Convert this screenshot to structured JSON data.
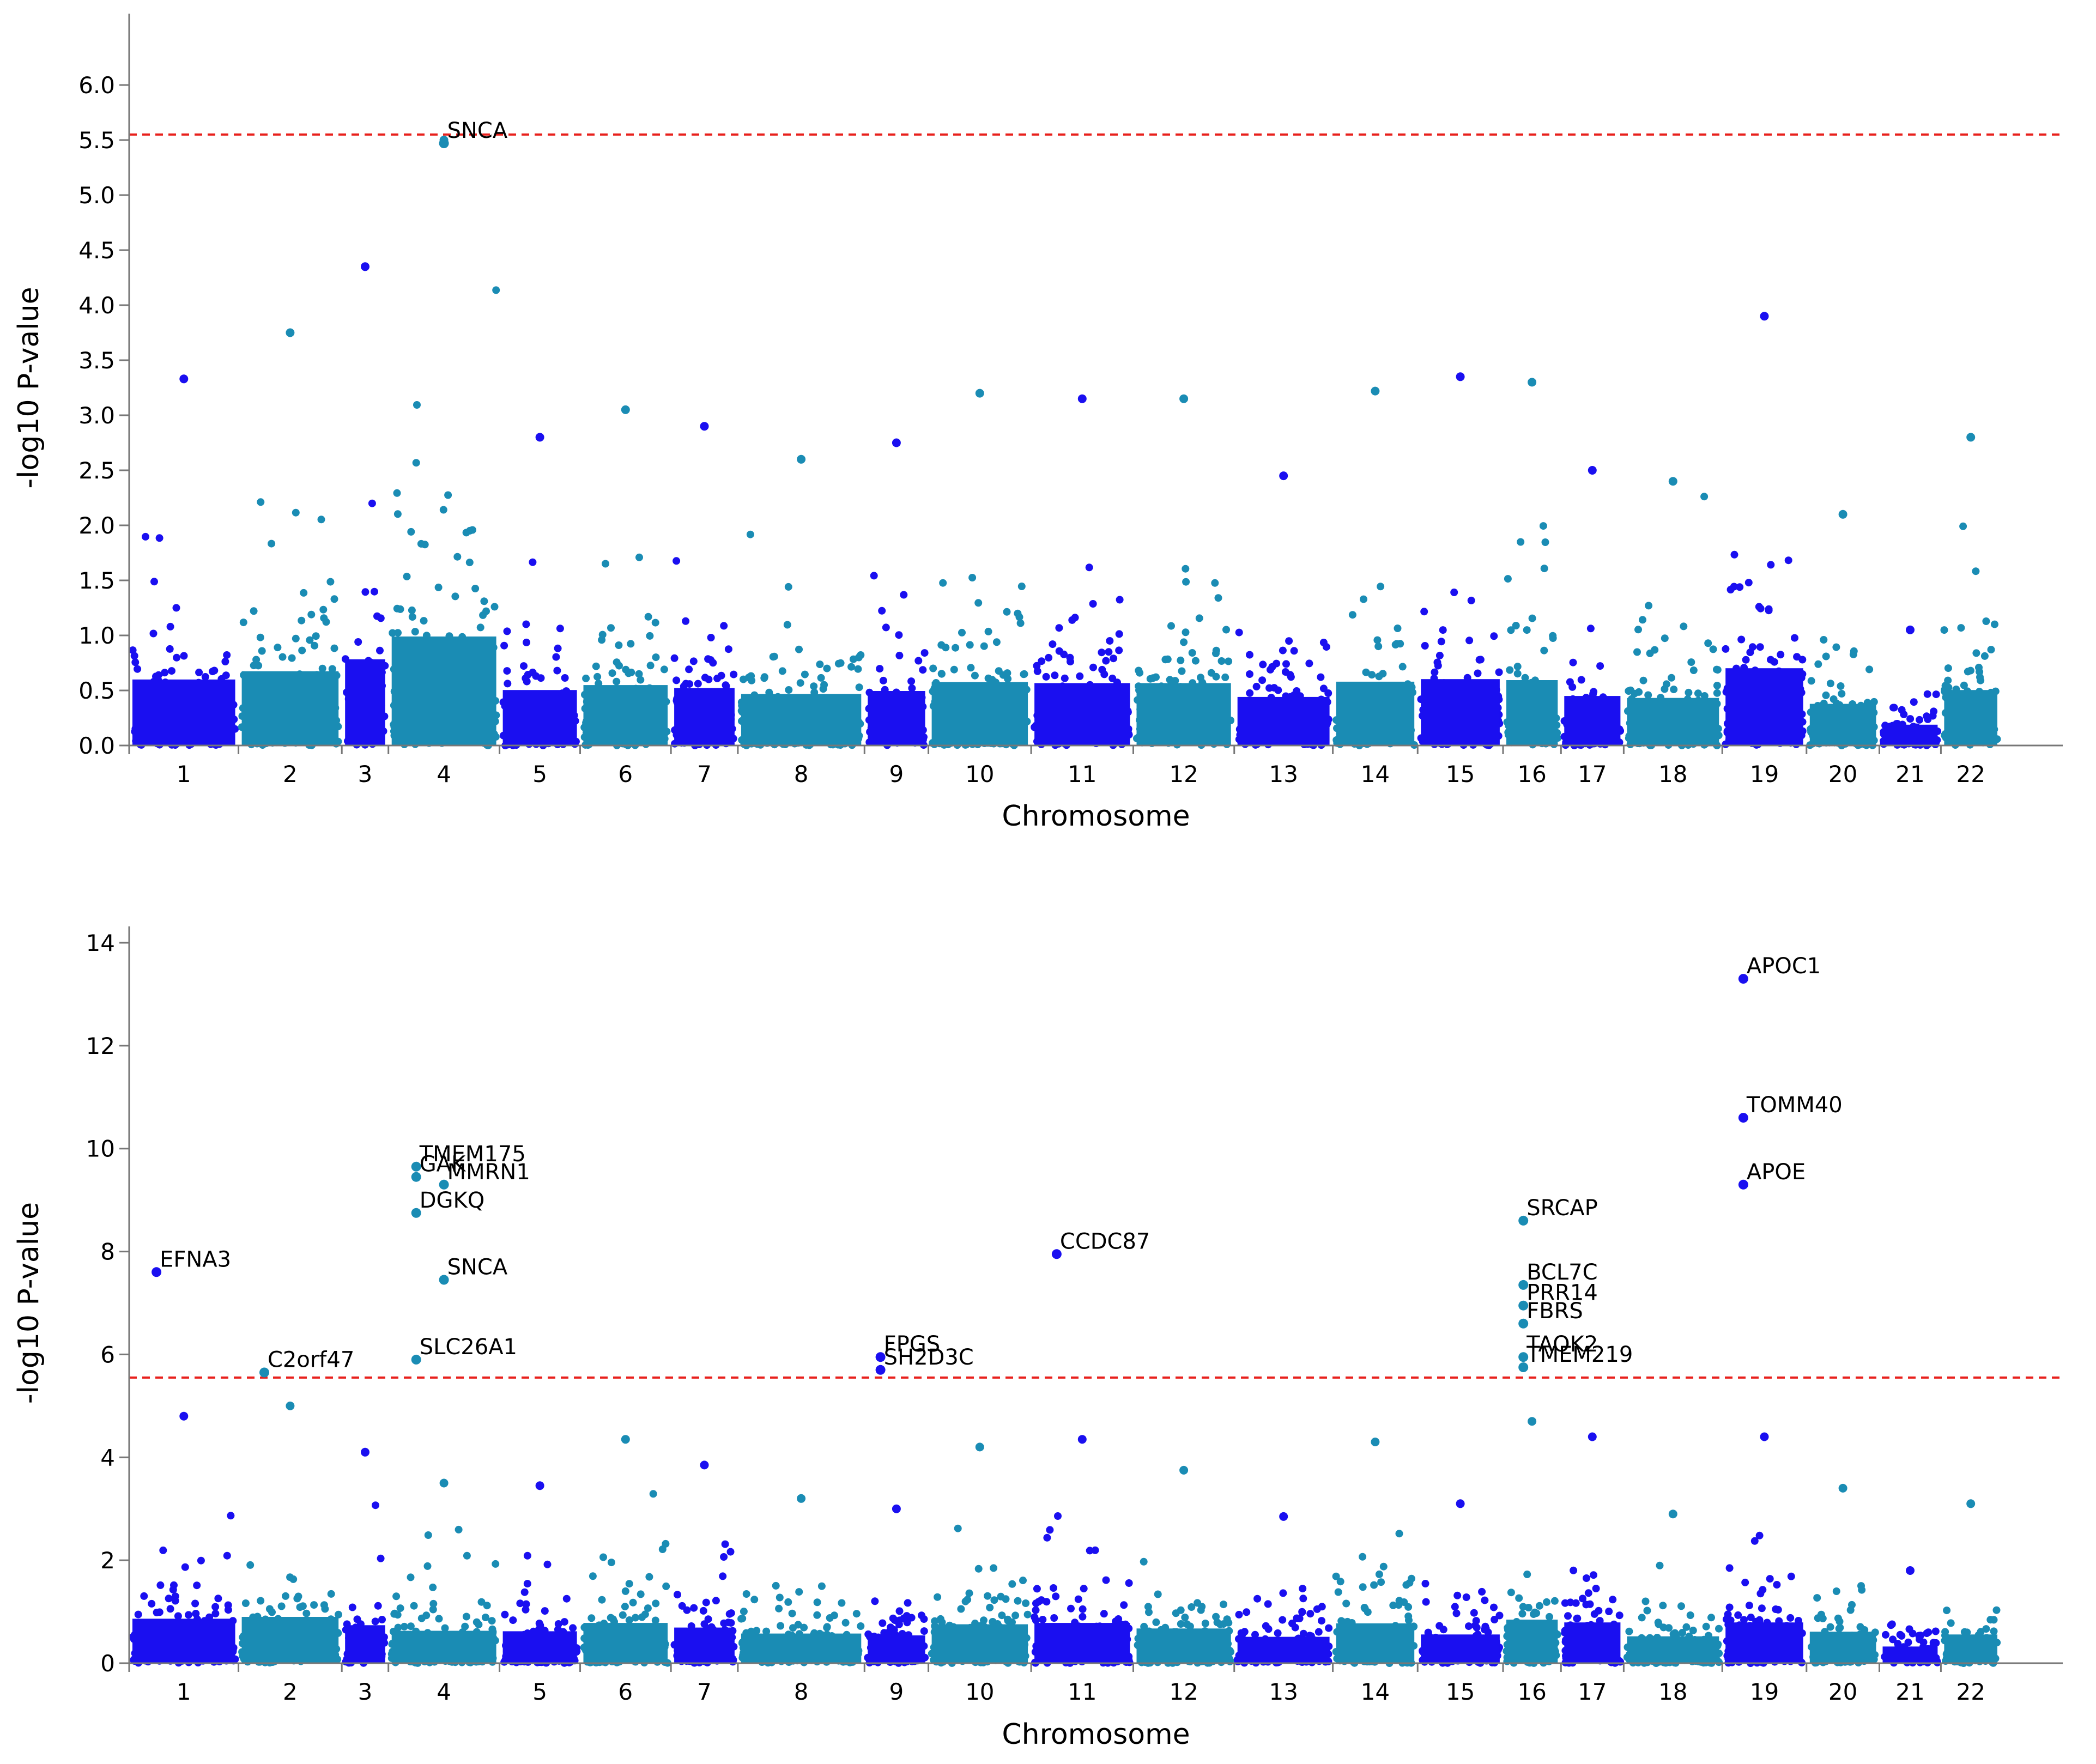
{
  "colors": {
    "odd_chromosome": "#1a0ff0",
    "even_chromosome": "#1a8cb4",
    "threshold": "#e8201c",
    "axis": "#777777"
  },
  "chart_data": [
    {
      "type": "scatter",
      "subtype": "manhattan",
      "xlabel": "Chromosome",
      "ylabel": "-log10 P-value",
      "ylim": [
        0,
        6.5
      ],
      "yticks": [
        "0.0",
        "0.5",
        "1.0",
        "1.5",
        "2.0",
        "2.5",
        "3.0",
        "3.5",
        "4.0",
        "4.5",
        "5.0",
        "5.5",
        "6.0"
      ],
      "threshold": 5.55,
      "chromosomes": [
        "1",
        "2",
        "3",
        "4",
        "5",
        "6",
        "7",
        "8",
        "9",
        "10",
        "11",
        "12",
        "13",
        "14",
        "15",
        "16",
        "17",
        "18",
        "19",
        "20",
        "21",
        "22"
      ],
      "chrom_max_values": [
        3.33,
        3.75,
        4.35,
        5.5,
        2.8,
        3.05,
        2.9,
        2.6,
        2.75,
        3.2,
        3.15,
        3.15,
        2.45,
        3.22,
        3.35,
        3.3,
        2.5,
        2.4,
        3.9,
        2.1,
        1.05,
        2.8
      ],
      "labeled_points": [
        {
          "gene": "SNCA",
          "chromosome": "4",
          "value": 5.47
        }
      ]
    },
    {
      "type": "scatter",
      "subtype": "manhattan",
      "xlabel": "Chromosome",
      "ylabel": "-log10 P-value",
      "ylim": [
        0,
        14
      ],
      "yticks": [
        "0",
        "2",
        "4",
        "6",
        "8",
        "10",
        "12",
        "14"
      ],
      "threshold": 5.55,
      "chromosomes": [
        "1",
        "2",
        "3",
        "4",
        "5",
        "6",
        "7",
        "8",
        "9",
        "10",
        "11",
        "12",
        "13",
        "14",
        "15",
        "16",
        "17",
        "18",
        "19",
        "20",
        "21",
        "22"
      ],
      "chrom_max_values": [
        4.8,
        5.0,
        4.1,
        3.5,
        3.45,
        4.35,
        3.85,
        3.2,
        3.0,
        4.2,
        4.35,
        3.75,
        2.85,
        4.3,
        3.1,
        4.7,
        4.4,
        2.9,
        4.4,
        3.4,
        1.8,
        3.1
      ],
      "labeled_points": [
        {
          "gene": "EFNA3",
          "chromosome": "1",
          "value": 7.6
        },
        {
          "gene": "C2orf47",
          "chromosome": "2",
          "value": 5.65
        },
        {
          "gene": "TMEM175",
          "chromosome": "4",
          "value": 9.65
        },
        {
          "gene": "GAK",
          "chromosome": "4",
          "value": 9.45
        },
        {
          "gene": "MMRN1",
          "chromosome": "4",
          "value": 9.3
        },
        {
          "gene": "DGKQ",
          "chromosome": "4",
          "value": 8.75
        },
        {
          "gene": "SNCA",
          "chromosome": "4",
          "value": 7.45
        },
        {
          "gene": "SLC26A1",
          "chromosome": "4",
          "value": 5.9
        },
        {
          "gene": "FPGS",
          "chromosome": "9",
          "value": 5.95
        },
        {
          "gene": "SH2D3C",
          "chromosome": "9",
          "value": 5.7
        },
        {
          "gene": "CCDC87",
          "chromosome": "11",
          "value": 7.95
        },
        {
          "gene": "SRCAP",
          "chromosome": "16",
          "value": 8.6
        },
        {
          "gene": "BCL7C",
          "chromosome": "16",
          "value": 7.35
        },
        {
          "gene": "PRR14",
          "chromosome": "16",
          "value": 6.95
        },
        {
          "gene": "FBRS",
          "chromosome": "16",
          "value": 6.6
        },
        {
          "gene": "TAOK2",
          "chromosome": "16",
          "value": 5.95
        },
        {
          "gene": "TMEM219",
          "chromosome": "16",
          "value": 5.75
        },
        {
          "gene": "APOC1",
          "chromosome": "19",
          "value": 13.3
        },
        {
          "gene": "TOMM40",
          "chromosome": "19",
          "value": 10.6
        },
        {
          "gene": "APOE",
          "chromosome": "19",
          "value": 9.3
        }
      ]
    }
  ]
}
